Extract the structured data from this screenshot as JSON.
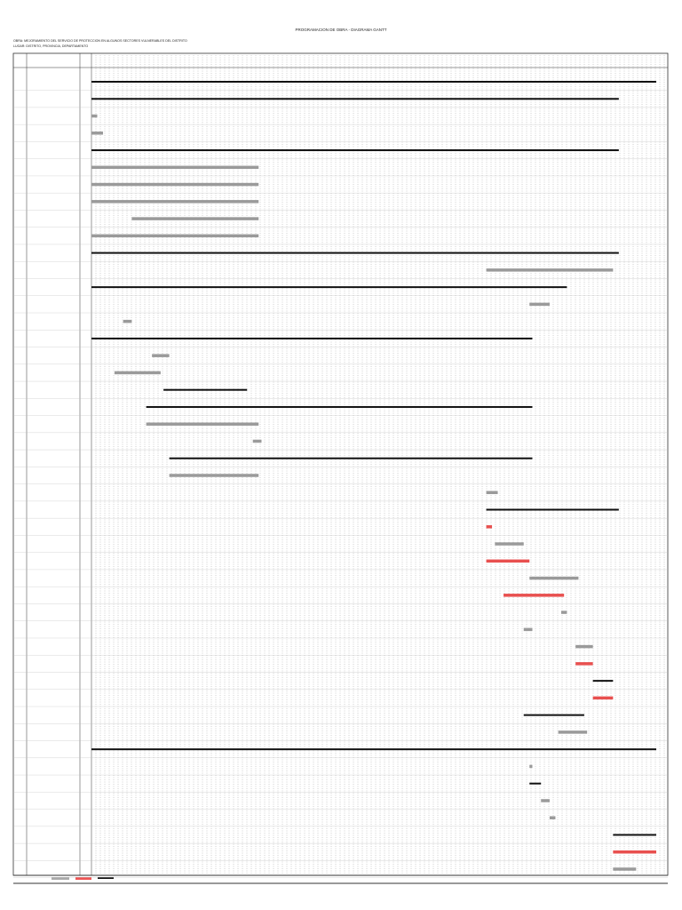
{
  "title": "PROGRAMACION DE OBRA - DIAGRAMA GANTT",
  "header": {
    "line1": "OBRA: MEJORAMIENTO DEL SERVICIO DE PROTECCION EN ALGUNOS SECTORES VULNERABLES DEL DISTRITO",
    "line2": "LUGAR: DISTRITO, PROVINCIA, DEPARTAMENTO"
  },
  "timeline": {
    "start": 0,
    "end": 200
  },
  "tasks": [
    {
      "start": 0,
      "end": 196,
      "kind": "summary"
    },
    {
      "start": 0,
      "end": 183,
      "kind": "summary"
    },
    {
      "start": 0,
      "end": 2,
      "kind": "task"
    },
    {
      "start": 0,
      "end": 4,
      "kind": "task"
    },
    {
      "start": 0,
      "end": 183,
      "kind": "summary"
    },
    {
      "start": 0,
      "end": 58,
      "kind": "task"
    },
    {
      "start": 0,
      "end": 58,
      "kind": "task"
    },
    {
      "start": 0,
      "end": 58,
      "kind": "task"
    },
    {
      "start": 14,
      "end": 58,
      "kind": "task"
    },
    {
      "start": 0,
      "end": 58,
      "kind": "task"
    },
    {
      "start": 0,
      "end": 183,
      "kind": "summary"
    },
    {
      "start": 137,
      "end": 181,
      "kind": "task"
    },
    {
      "start": 0,
      "end": 165,
      "kind": "summary"
    },
    {
      "start": 152,
      "end": 159,
      "kind": "task"
    },
    {
      "start": 11,
      "end": 14,
      "kind": "task"
    },
    {
      "start": 0,
      "end": 153,
      "kind": "summary"
    },
    {
      "start": 21,
      "end": 27,
      "kind": "task"
    },
    {
      "start": 8,
      "end": 24,
      "kind": "task"
    },
    {
      "start": 25,
      "end": 54,
      "kind": "summary"
    },
    {
      "start": 19,
      "end": 153,
      "kind": "summary"
    },
    {
      "start": 19,
      "end": 58,
      "kind": "task"
    },
    {
      "start": 56,
      "end": 59,
      "kind": "task"
    },
    {
      "start": 27,
      "end": 153,
      "kind": "summary"
    },
    {
      "start": 27,
      "end": 58,
      "kind": "task"
    },
    {
      "start": 137,
      "end": 141,
      "kind": "task"
    },
    {
      "start": 137,
      "end": 183,
      "kind": "summary"
    },
    {
      "start": 137,
      "end": 139,
      "kind": "critical"
    },
    {
      "start": 140,
      "end": 150,
      "kind": "task"
    },
    {
      "start": 137,
      "end": 152,
      "kind": "critical"
    },
    {
      "start": 152,
      "end": 169,
      "kind": "task"
    },
    {
      "start": 143,
      "end": 164,
      "kind": "critical"
    },
    {
      "start": 163,
      "end": 165,
      "kind": "task"
    },
    {
      "start": 150,
      "end": 153,
      "kind": "task"
    },
    {
      "start": 168,
      "end": 174,
      "kind": "task"
    },
    {
      "start": 168,
      "end": 174,
      "kind": "critical"
    },
    {
      "start": 174,
      "end": 181,
      "kind": "summary"
    },
    {
      "start": 174,
      "end": 181,
      "kind": "critical"
    },
    {
      "start": 150,
      "end": 171,
      "kind": "summary"
    },
    {
      "start": 162,
      "end": 172,
      "kind": "task"
    },
    {
      "start": 0,
      "end": 196,
      "kind": "summary"
    },
    {
      "start": 152,
      "end": 153,
      "kind": "task"
    },
    {
      "start": 152,
      "end": 156,
      "kind": "summary"
    },
    {
      "start": 156,
      "end": 159,
      "kind": "task"
    },
    {
      "start": 159,
      "end": 161,
      "kind": "task"
    },
    {
      "start": 181,
      "end": 196,
      "kind": "summary"
    },
    {
      "start": 181,
      "end": 196,
      "kind": "critical"
    },
    {
      "start": 181,
      "end": 189,
      "kind": "task"
    }
  ]
}
